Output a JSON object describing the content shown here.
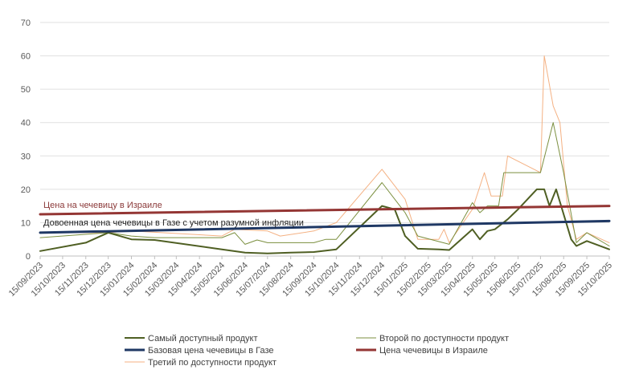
{
  "chart_data": {
    "type": "line",
    "title": "",
    "xlabel": "",
    "ylabel": "",
    "ylim": [
      0,
      70
    ],
    "yticks": [
      0,
      10,
      20,
      30,
      40,
      50,
      60,
      70
    ],
    "grid": "horizontal",
    "legend_position": "bottom",
    "x_tick_labels": [
      "15/09/2023",
      "15/10/2023",
      "15/11/2023",
      "15/12/2023",
      "15/01/2024",
      "15/02/2024",
      "15/03/2024",
      "15/04/2024",
      "15/05/2024",
      "15/06/2024",
      "15/07/2024",
      "15/08/2024",
      "15/09/2024",
      "15/10/2024",
      "15/11/2024",
      "15/12/2024",
      "15/01/2025",
      "15/02/2025",
      "15/03/2025",
      "15/04/2025",
      "15/05/2025",
      "15/06/2025",
      "15/07/2025",
      "15/08/2025",
      "15/09/2025",
      "15/10/2025"
    ],
    "annotations": [
      {
        "text": "Цена  на чечевицу  в Израиле",
        "color": "#8b3a3a"
      },
      {
        "text": "Довоенная цена чечевицы в Газе с учетом разумной инфляции",
        "color": "#1f1f1f"
      }
    ],
    "series": [
      {
        "name": "Самый доступный продукт",
        "color": "#4f5f23",
        "width": 2,
        "points": [
          [
            "15/09/2023",
            1.5
          ],
          [
            "15/11/2023",
            4
          ],
          [
            "15/12/2023",
            7
          ],
          [
            "15/01/2024",
            5
          ],
          [
            "15/02/2024",
            4.8
          ],
          [
            "15/05/2024",
            2
          ],
          [
            "15/06/2024",
            1
          ],
          [
            "15/07/2024",
            0.8
          ],
          [
            "15/08/2024",
            1
          ],
          [
            "15/09/2024",
            1.2
          ],
          [
            "15/10/2024",
            2
          ],
          [
            "15/12/2024",
            15
          ],
          [
            "01/01/2025",
            14
          ],
          [
            "15/01/2025",
            6
          ],
          [
            "01/02/2025",
            2.2
          ],
          [
            "01/03/2025",
            2
          ],
          [
            "15/03/2025",
            1.8
          ],
          [
            "15/04/2025",
            8
          ],
          [
            "25/04/2025",
            5
          ],
          [
            "05/05/2025",
            7.5
          ],
          [
            "15/05/2025",
            8
          ],
          [
            "01/06/2025",
            11
          ],
          [
            "15/06/2025",
            14
          ],
          [
            "10/07/2025",
            20
          ],
          [
            "20/07/2025",
            20
          ],
          [
            "27/07/2025",
            15
          ],
          [
            "05/08/2025",
            20
          ],
          [
            "25/08/2025",
            5
          ],
          [
            "01/09/2025",
            3
          ],
          [
            "15/09/2025",
            4.5
          ],
          [
            "15/10/2025",
            2
          ]
        ]
      },
      {
        "name": "Второй по доступности продукт",
        "color": "#7b8f3f",
        "width": 1,
        "points": [
          [
            "15/09/2023",
            5.5
          ],
          [
            "15/12/2023",
            7
          ],
          [
            "15/01/2024",
            6
          ],
          [
            "15/02/2024",
            5.5
          ],
          [
            "15/05/2024",
            5.5
          ],
          [
            "01/06/2024",
            7
          ],
          [
            "15/06/2024",
            3.5
          ],
          [
            "01/07/2024",
            4.8
          ],
          [
            "15/07/2024",
            4
          ],
          [
            "15/09/2024",
            4
          ],
          [
            "01/10/2024",
            5
          ],
          [
            "15/10/2024",
            5
          ],
          [
            "15/12/2024",
            22
          ],
          [
            "15/01/2025",
            13
          ],
          [
            "01/02/2025",
            6
          ],
          [
            "15/03/2025",
            3.5
          ],
          [
            "15/04/2025",
            16
          ],
          [
            "25/04/2025",
            13
          ],
          [
            "05/05/2025",
            15
          ],
          [
            "20/05/2025",
            15
          ],
          [
            "27/05/2025",
            25
          ],
          [
            "15/07/2025",
            25
          ],
          [
            "01/08/2025",
            40
          ],
          [
            "15/08/2025",
            25
          ],
          [
            "01/09/2025",
            4
          ],
          [
            "15/09/2025",
            7
          ],
          [
            "15/10/2025",
            3
          ]
        ]
      },
      {
        "name": "Третий по доступности продукт",
        "color": "#f4b183",
        "width": 1,
        "points": [
          [
            "15/09/2023",
            7
          ],
          [
            "15/12/2023",
            7
          ],
          [
            "15/01/2024",
            7.5
          ],
          [
            "15/05/2024",
            6
          ],
          [
            "01/06/2024",
            8
          ],
          [
            "15/07/2024",
            7.5
          ],
          [
            "01/08/2024",
            6
          ],
          [
            "15/09/2024",
            7.5
          ],
          [
            "15/10/2024",
            10
          ],
          [
            "15/12/2024",
            26
          ],
          [
            "15/01/2025",
            17
          ],
          [
            "01/02/2025",
            5
          ],
          [
            "01/03/2025",
            5
          ],
          [
            "08/03/2025",
            8
          ],
          [
            "15/03/2025",
            4
          ],
          [
            "15/04/2025",
            14
          ],
          [
            "01/05/2025",
            25
          ],
          [
            "10/05/2025",
            18
          ],
          [
            "25/05/2025",
            18
          ],
          [
            "01/06/2025",
            30
          ],
          [
            "15/07/2025",
            25
          ],
          [
            "20/07/2025",
            60
          ],
          [
            "01/08/2025",
            45
          ],
          [
            "10/08/2025",
            40
          ],
          [
            "20/08/2025",
            15
          ],
          [
            "01/09/2025",
            5
          ],
          [
            "15/09/2025",
            7
          ],
          [
            "15/10/2025",
            4
          ]
        ]
      },
      {
        "name": "Базовая цена чечевицы в Газе",
        "color": "#1f3864",
        "width": 3,
        "points": [
          [
            "15/09/2023",
            7
          ],
          [
            "15/10/2025",
            10.5
          ]
        ]
      },
      {
        "name": "Цена чечевицы в Израиле",
        "color": "#943634",
        "width": 3,
        "points": [
          [
            "15/09/2023",
            12.5
          ],
          [
            "15/10/2025",
            15
          ]
        ]
      }
    ],
    "legend_order": [
      0,
      1,
      3,
      4,
      2
    ]
  }
}
